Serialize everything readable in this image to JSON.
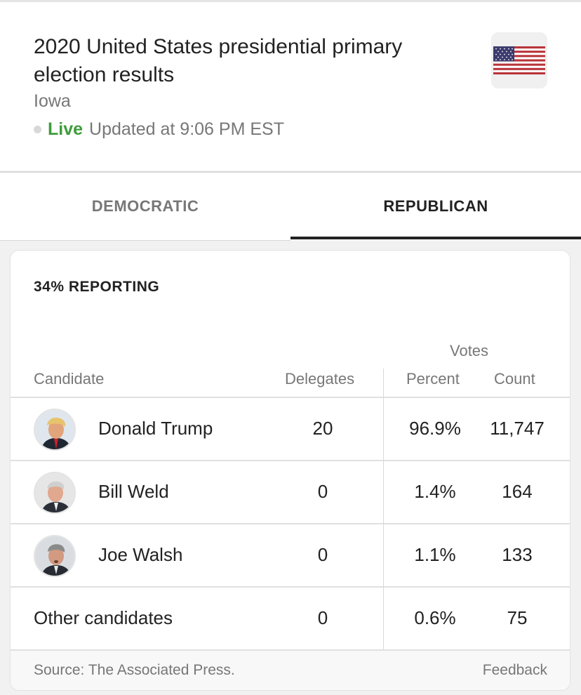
{
  "header": {
    "title": "2020 United States presidential primary election results",
    "region": "Iowa",
    "live_label": "Live",
    "updated_text": "Updated at 9:06 PM EST",
    "flag_icon": "us-flag-icon"
  },
  "tabs": [
    {
      "label": "DEMOCRATIC",
      "selected": false
    },
    {
      "label": "REPUBLICAN",
      "selected": true
    }
  ],
  "card": {
    "reporting": "34% REPORTING",
    "headers": {
      "votes_group": "Votes",
      "candidate": "Candidate",
      "delegates": "Delegates",
      "percent": "Percent",
      "count": "Count"
    },
    "rows": [
      {
        "name": "Donald Trump",
        "delegates": "20",
        "percent": "96.9%",
        "count": "11,747",
        "avatar": "candidate-photo"
      },
      {
        "name": "Bill Weld",
        "delegates": "0",
        "percent": "1.4%",
        "count": "164",
        "avatar": "candidate-photo"
      },
      {
        "name": "Joe Walsh",
        "delegates": "0",
        "percent": "1.1%",
        "count": "133",
        "avatar": "candidate-photo"
      },
      {
        "name": "Other candidates",
        "delegates": "0",
        "percent": "0.6%",
        "count": "75"
      }
    ],
    "footer": {
      "source": "Source: The Associated Press.",
      "feedback": "Feedback"
    }
  },
  "colors": {
    "live_green": "#3e9c3a",
    "selected_tab_underline": "#222222",
    "muted_text": "#777777"
  }
}
